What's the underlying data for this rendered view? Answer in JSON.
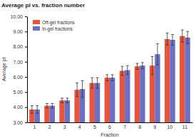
{
  "chart_data": {
    "type": "bar",
    "title": "Average pI vs. fraction number",
    "x_label": "Fraction",
    "y_label": "Average pI",
    "categories": [
      "1",
      "2",
      "3",
      "4",
      "5",
      "6",
      "7",
      "8",
      "9",
      "10",
      "11"
    ],
    "series": [
      {
        "name": "Off-gel fractions",
        "color": "#e9553a",
        "values": [
          3.85,
          4.1,
          4.45,
          5.15,
          5.6,
          5.95,
          6.4,
          6.7,
          6.75,
          8.5,
          8.7
        ],
        "errors": [
          0.25,
          0.15,
          0.15,
          0.45,
          0.35,
          0.2,
          0.3,
          0.2,
          0.6,
          0.4,
          0.4
        ]
      },
      {
        "name": "In-gel fractions",
        "color": "#6a70c4",
        "values": [
          3.85,
          4.1,
          4.45,
          5.2,
          5.6,
          5.95,
          6.45,
          6.75,
          7.5,
          8.45,
          8.6
        ],
        "errors": [
          0.25,
          0.15,
          0.15,
          0.55,
          0.35,
          0.2,
          0.3,
          0.2,
          0.7,
          0.35,
          0.4
        ]
      }
    ],
    "ylim": [
      3,
      10
    ],
    "yticks": [
      {
        "value": 3,
        "label": "3.00"
      },
      {
        "value": 4,
        "label": "4.00"
      },
      {
        "value": 5,
        "label": "5.00"
      },
      {
        "value": 6,
        "label": "6.00"
      },
      {
        "value": 7,
        "label": "7.00"
      },
      {
        "value": 8,
        "label": "8.00"
      },
      {
        "value": 9,
        "label": "9.00"
      },
      {
        "value": 10,
        "label": "10.00"
      }
    ],
    "legend": "top-left",
    "grid": false
  }
}
